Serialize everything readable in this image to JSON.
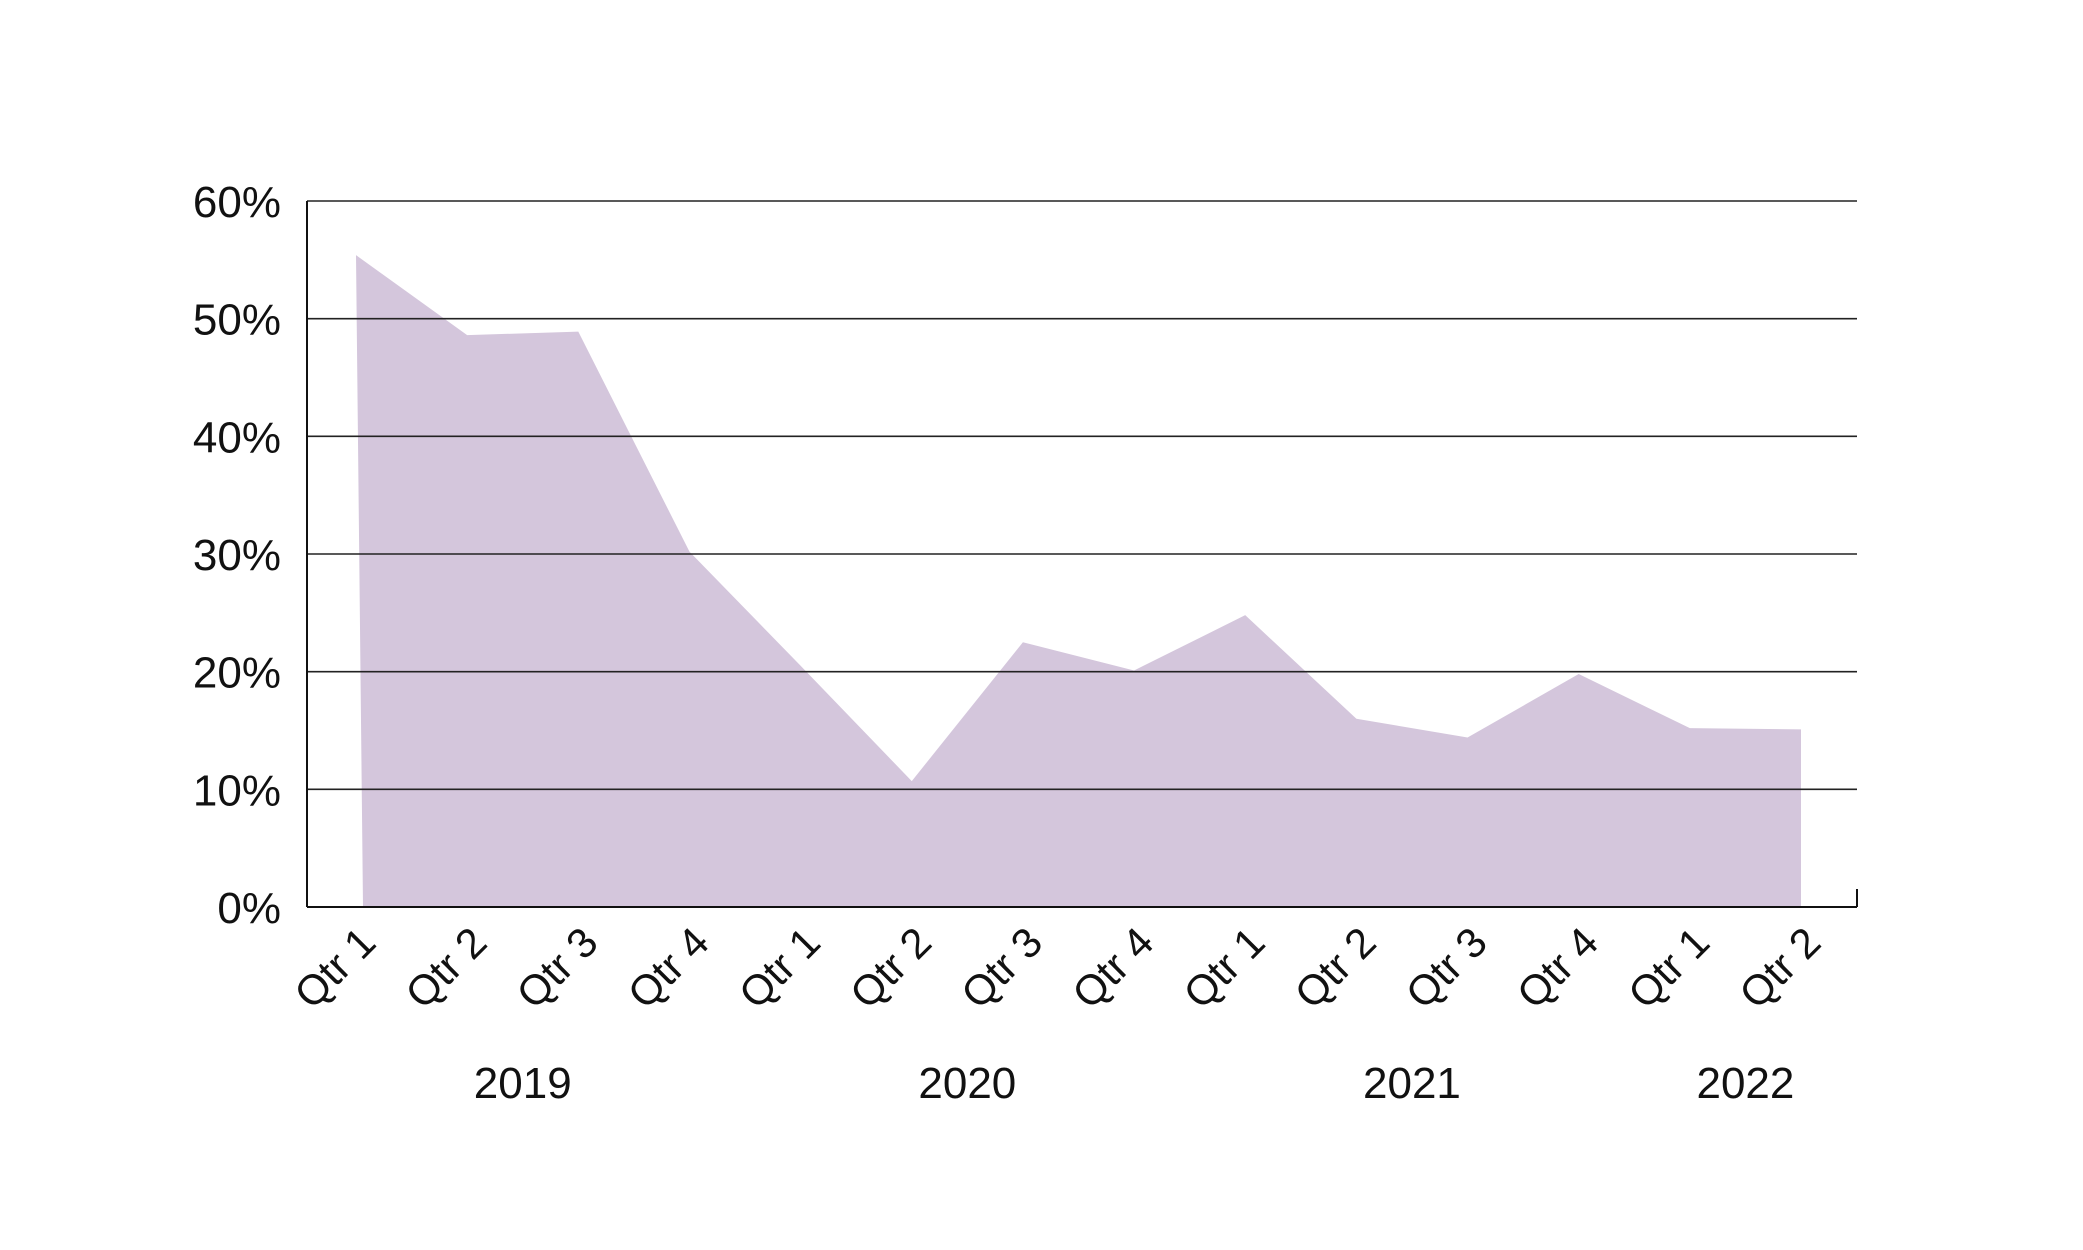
{
  "chart_data": {
    "type": "area",
    "title": "",
    "xlabel": "",
    "ylabel": "",
    "ylim": [
      0,
      60
    ],
    "y_ticks": [
      "0%",
      "10%",
      "20%",
      "30%",
      "40%",
      "50%",
      "60%"
    ],
    "y_tick_values": [
      0,
      10,
      20,
      30,
      40,
      50,
      60
    ],
    "grid": true,
    "legend": "none",
    "categories": [
      "Qtr 1",
      "Qtr 2",
      "Qtr 3",
      "Qtr 4",
      "Qtr 1",
      "Qtr 2",
      "Qtr 3",
      "Qtr 4",
      "Qtr 1",
      "Qtr 2",
      "Qtr 3",
      "Qtr 4",
      "Qtr 1",
      "Qtr 2"
    ],
    "groups": [
      {
        "label": "2019",
        "start": 0,
        "end": 3
      },
      {
        "label": "2020",
        "start": 4,
        "end": 7
      },
      {
        "label": "2021",
        "start": 8,
        "end": 11
      },
      {
        "label": "2022",
        "start": 12,
        "end": 13
      }
    ],
    "series": [
      {
        "values": [
          55.4,
          48.6,
          48.9,
          30.2,
          20.5,
          10.7,
          22.5,
          20.1,
          24.8,
          16.0,
          14.4,
          19.8,
          15.2,
          15.1
        ]
      }
    ],
    "colors": {
      "area": "#d4c6dc",
      "grid": "#222222",
      "axis": "#111111"
    }
  }
}
